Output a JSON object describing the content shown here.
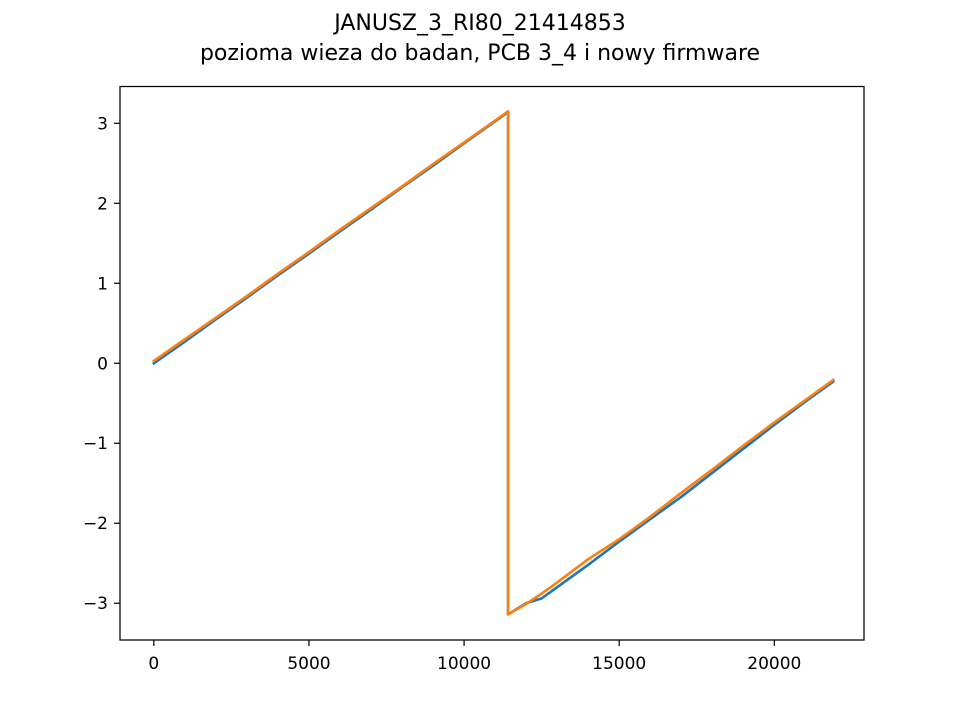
{
  "chart_data": {
    "type": "line",
    "title": "JANUSZ_3_RI80_21414853",
    "subtitle": "pozioma wieza do badan, PCB 3_4 i nowy firmware",
    "xlabel": "",
    "ylabel": "",
    "xlim": [
      -1090,
      22890
    ],
    "ylim": [
      -3.46,
      3.46
    ],
    "grid": false,
    "legend": "none",
    "x_ticks": [
      0,
      5000,
      10000,
      15000,
      20000
    ],
    "x_tick_labels": [
      "0",
      "5000",
      "10000",
      "15000",
      "20000"
    ],
    "y_ticks": [
      -3,
      -2,
      -1,
      0,
      1,
      2,
      3
    ],
    "y_tick_labels": [
      "−3",
      "−2",
      "−1",
      "0",
      "1",
      "2",
      "3"
    ],
    "series": [
      {
        "color": "#1f77b4",
        "points": [
          [
            0,
            0.0
          ],
          [
            1000,
            0.27
          ],
          [
            2000,
            0.55
          ],
          [
            3000,
            0.82
          ],
          [
            4000,
            1.1
          ],
          [
            5000,
            1.37
          ],
          [
            6000,
            1.65
          ],
          [
            7000,
            1.92
          ],
          [
            8000,
            2.2
          ],
          [
            9000,
            2.47
          ],
          [
            10000,
            2.75
          ],
          [
            11420,
            3.14
          ],
          [
            11420,
            -3.14
          ],
          [
            12000,
            -3.0
          ],
          [
            12500,
            -2.94
          ],
          [
            13000,
            -2.8
          ],
          [
            14000,
            -2.52
          ],
          [
            15000,
            -2.23
          ],
          [
            16000,
            -1.95
          ],
          [
            17000,
            -1.67
          ],
          [
            18000,
            -1.37
          ],
          [
            19000,
            -1.07
          ],
          [
            20000,
            -0.77
          ],
          [
            21000,
            -0.48
          ],
          [
            21900,
            -0.23
          ]
        ]
      },
      {
        "color": "#ff7f0e",
        "points": [
          [
            0,
            0.03
          ],
          [
            1000,
            0.3
          ],
          [
            2000,
            0.57
          ],
          [
            3000,
            0.84
          ],
          [
            4000,
            1.12
          ],
          [
            5000,
            1.39
          ],
          [
            6000,
            1.67
          ],
          [
            7000,
            1.94
          ],
          [
            8000,
            2.21
          ],
          [
            9000,
            2.49
          ],
          [
            10000,
            2.76
          ],
          [
            11420,
            3.15
          ],
          [
            11420,
            -3.14
          ],
          [
            12000,
            -3.01
          ],
          [
            12500,
            -2.88
          ],
          [
            13000,
            -2.74
          ],
          [
            14000,
            -2.45
          ],
          [
            15000,
            -2.2
          ],
          [
            16000,
            -1.92
          ],
          [
            17000,
            -1.62
          ],
          [
            18000,
            -1.33
          ],
          [
            19000,
            -1.03
          ],
          [
            20000,
            -0.74
          ],
          [
            21000,
            -0.46
          ],
          [
            21900,
            -0.21
          ]
        ]
      }
    ]
  }
}
